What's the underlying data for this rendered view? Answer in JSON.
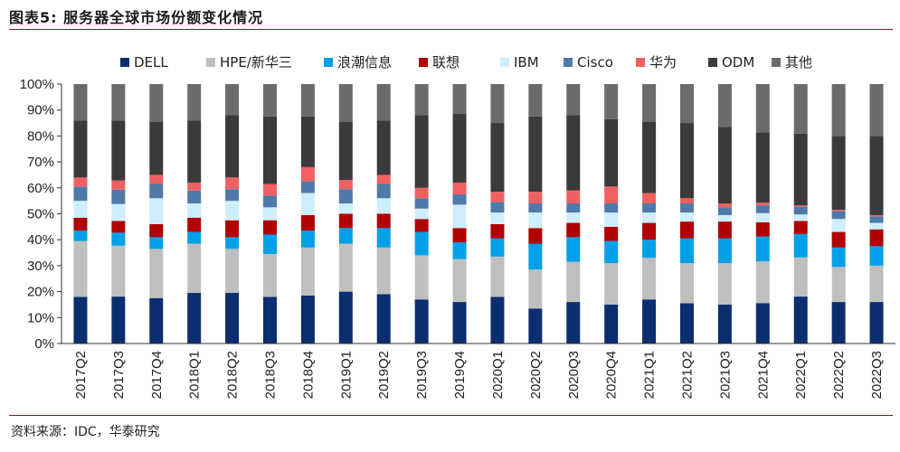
{
  "figure": {
    "title": "图表5:  服务器全球市场份额变化情况",
    "source": "资料来源：IDC，华泰研究"
  },
  "chart_data": {
    "type": "bar",
    "stacked": true,
    "percent": true,
    "title": "服务器全球市场份额变化情况",
    "xlabel": "",
    "ylabel": "",
    "ylim": [
      0,
      100
    ],
    "yticks": [
      "0%",
      "10%",
      "20%",
      "30%",
      "40%",
      "50%",
      "60%",
      "70%",
      "80%",
      "90%",
      "100%"
    ],
    "legend_position": "top",
    "categories": [
      "2017Q2",
      "2017Q3",
      "2017Q4",
      "2018Q1",
      "2018Q2",
      "2018Q3",
      "2018Q4",
      "2019Q1",
      "2019Q2",
      "2019Q3",
      "2019Q4",
      "2020Q1",
      "2020Q2",
      "2020Q3",
      "2020Q4",
      "2021Q1",
      "2021Q2",
      "2021Q3",
      "2021Q4",
      "2022Q1",
      "2022Q2",
      "2022Q3"
    ],
    "series": [
      {
        "name": "DELL",
        "color": "#0b2e6e",
        "values": [
          18,
          18,
          17.5,
          19.5,
          19.5,
          18,
          18.5,
          20,
          19,
          17,
          16,
          18,
          13.5,
          16,
          15,
          17,
          15.5,
          15,
          15.5,
          18,
          16,
          16
        ]
      },
      {
        "name": "HPE/新华三",
        "color": "#bfbfbf",
        "values": [
          21.5,
          19.5,
          19,
          19,
          17,
          16.5,
          18.5,
          18.5,
          18,
          17,
          16.5,
          15.5,
          15,
          15.5,
          16,
          16,
          15.5,
          16,
          16,
          15,
          13.5,
          14
        ]
      },
      {
        "name": "浪潮信息",
        "color": "#00a0e9",
        "values": [
          4,
          5,
          4.5,
          4.5,
          4.5,
          7.5,
          6.5,
          6,
          7.5,
          9,
          6.5,
          7,
          10,
          9.5,
          8.5,
          7,
          9.5,
          9.5,
          9.5,
          9,
          7.5,
          7.5
        ]
      },
      {
        "name": "联想",
        "color": "#b00000",
        "values": [
          5,
          4.5,
          5,
          5.5,
          6.5,
          5.5,
          6,
          5.5,
          5.5,
          5,
          5.5,
          5.5,
          6,
          5.5,
          5.5,
          6.5,
          6.5,
          6.5,
          5.5,
          5,
          6,
          6.5
        ]
      },
      {
        "name": "IBM",
        "color": "#cdeefa",
        "values": [
          6.5,
          6.5,
          10,
          5.5,
          7.5,
          5,
          8.5,
          4,
          6,
          4,
          9,
          4.5,
          6,
          4,
          5.5,
          4,
          3.5,
          2.5,
          3.5,
          2.5,
          5,
          2.5
        ]
      },
      {
        "name": "Cisco",
        "color": "#4f79a8",
        "values": [
          5.5,
          5.5,
          5.5,
          5,
          4.5,
          4.5,
          4.5,
          5.5,
          5.5,
          4,
          4,
          4,
          3.5,
          3.5,
          3.5,
          3.5,
          3.5,
          3,
          3,
          3,
          3,
          2.5
        ]
      },
      {
        "name": "华为",
        "color": "#f06060",
        "values": [
          3.5,
          3.5,
          3.5,
          3,
          4.5,
          4.5,
          5.5,
          3.5,
          3.5,
          4,
          4.5,
          4,
          4.5,
          5,
          6.5,
          4,
          2,
          1.5,
          1,
          0.5,
          0.5,
          0.5
        ]
      },
      {
        "name": "ODM",
        "color": "#3a3a3a",
        "values": [
          22,
          23,
          20.5,
          24,
          24,
          26,
          19.5,
          22.5,
          21,
          28,
          26.5,
          26.5,
          29,
          29,
          26,
          27.5,
          29,
          29.5,
          27,
          27.5,
          28.5,
          30.5
        ]
      },
      {
        "name": "其他",
        "color": "#6b6b6b",
        "values": [
          14,
          14,
          14.5,
          14,
          12,
          12.5,
          12.5,
          14.5,
          14,
          12,
          11.5,
          15,
          12.5,
          12,
          13.5,
          14.5,
          15,
          16.5,
          18.5,
          19,
          20,
          20
        ]
      }
    ]
  }
}
